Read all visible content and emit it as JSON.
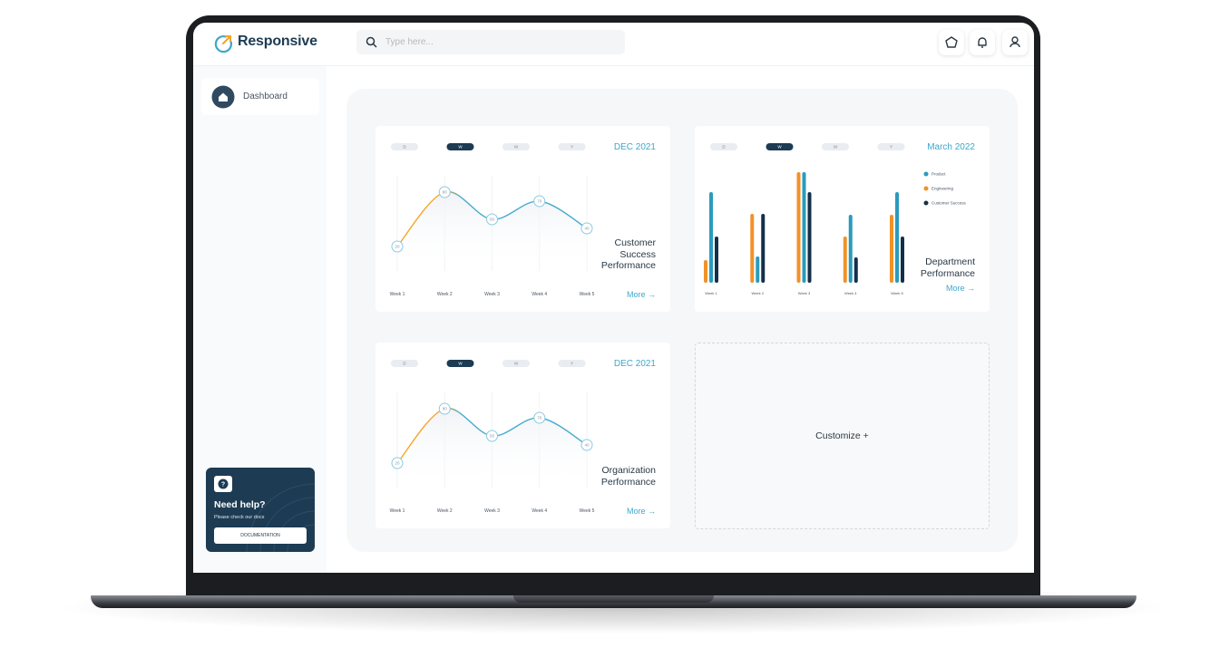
{
  "header": {
    "logo": "Responsive",
    "search_placeholder": "Type here..."
  },
  "sidebar": {
    "nav": [
      "Dashboard"
    ],
    "help": {
      "title": "Need help?",
      "text": "Please check our docs",
      "button": "DOCUMENTATION"
    }
  },
  "chart_data": [
    {
      "type": "line",
      "tabs": [
        "D",
        "W",
        "M",
        "Y"
      ],
      "active_tab": 1,
      "period": "DEC 2021",
      "title": "Customer Success Performance",
      "link": "More →",
      "categories": [
        "Week 1",
        "Week 2",
        "Week 3",
        "Week 4",
        "Week 5"
      ],
      "values": [
        20,
        80,
        50,
        70,
        40
      ],
      "color": "#45abd0",
      "start_color": "#f5a524"
    },
    {
      "type": "bar",
      "tabs": [
        "D",
        "W",
        "M",
        "Y"
      ],
      "active_tab": 1,
      "period": "March 2022",
      "title": "Department Performance",
      "link": "More →",
      "categories": [
        "Week 1",
        "Week 2",
        "Week 3",
        "Week 4",
        "Week 5"
      ],
      "series": [
        {
          "name": "Product",
          "color": "#2a9bbd",
          "values": [
            100,
            29,
            122,
            75,
            100
          ]
        },
        {
          "name": "Engineering",
          "color": "#f0922a",
          "values": [
            25,
            76,
            122,
            51,
            75
          ]
        },
        {
          "name": "Customer Success",
          "color": "#14304a",
          "values": [
            51,
            76,
            100,
            28,
            51
          ]
        }
      ]
    },
    {
      "type": "line",
      "tabs": [
        "D",
        "W",
        "M",
        "Y"
      ],
      "active_tab": 1,
      "period": "DEC 2021",
      "title": "Organization Performance",
      "link": "More →",
      "categories": [
        "Week 1",
        "Week 2",
        "Week 3",
        "Week 4",
        "Week 5"
      ],
      "values": [
        20,
        80,
        50,
        70,
        40
      ],
      "color": "#45abd0",
      "start_color": "#f5a524"
    }
  ],
  "customize": "Customize +"
}
